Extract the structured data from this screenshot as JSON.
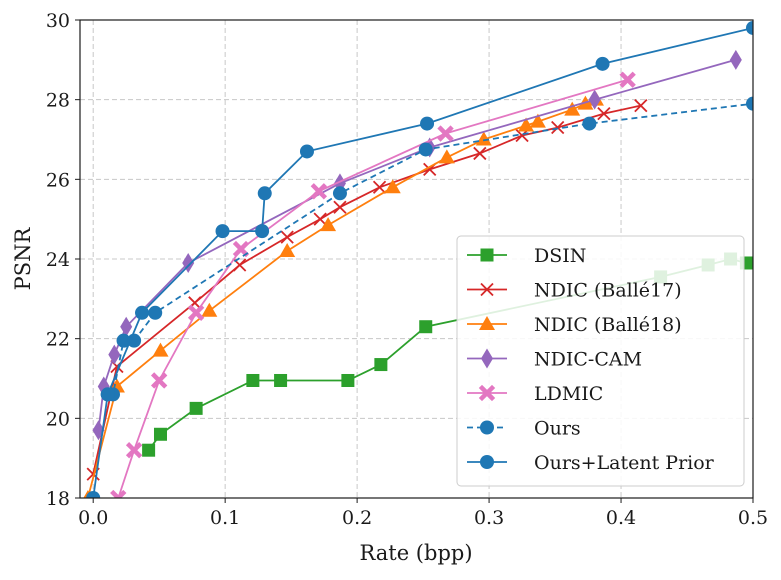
{
  "chart_data": {
    "type": "line",
    "title": "",
    "xlabel": "Rate (bpp)",
    "ylabel": "PSNR",
    "xlim": [
      -0.01,
      0.5
    ],
    "ylim": [
      18,
      30
    ],
    "xticks": [
      0.0,
      0.1,
      0.2,
      0.3,
      0.4,
      0.5
    ],
    "xtick_labels": [
      "0.0",
      "0.1",
      "0.2",
      "0.3",
      "0.4",
      "0.5"
    ],
    "yticks": [
      18,
      20,
      22,
      24,
      26,
      28,
      30
    ],
    "ytick_labels": [
      "18",
      "20",
      "22",
      "24",
      "26",
      "28",
      "30"
    ],
    "grid": true,
    "grid_style": "dashed",
    "legend_position": "lower-right",
    "series": [
      {
        "name": "DSIN",
        "color": "#2ca02c",
        "marker": "square",
        "line_style": "solid",
        "x": [
          0.042,
          0.051,
          0.078,
          0.121,
          0.142,
          0.193,
          0.218,
          0.252,
          0.43,
          0.466,
          0.483,
          0.495
        ],
        "y": [
          19.2,
          19.6,
          20.25,
          20.95,
          20.95,
          20.95,
          21.35,
          22.3,
          23.55,
          23.85,
          24.0,
          23.9
        ]
      },
      {
        "name": "NDIC (Ballé17)",
        "color": "#d62728",
        "marker": "x",
        "line_style": "solid",
        "x": [
          0.0,
          0.018,
          0.077,
          0.111,
          0.147,
          0.172,
          0.187,
          0.217,
          0.255,
          0.293,
          0.325,
          0.352,
          0.387,
          0.415
        ],
        "y": [
          18.6,
          21.3,
          22.9,
          23.85,
          24.55,
          25.0,
          25.3,
          25.8,
          26.25,
          26.65,
          27.1,
          27.3,
          27.65,
          27.85
        ]
      },
      {
        "name": "NDIC (Ballé18)",
        "color": "#ff7f0e",
        "marker": "triangle",
        "line_style": "solid",
        "x": [
          -0.004,
          0.018,
          0.051,
          0.088,
          0.147,
          0.178,
          0.227,
          0.268,
          0.296,
          0.328,
          0.337,
          0.363,
          0.373,
          0.381
        ],
        "y": [
          18.0,
          20.8,
          21.7,
          22.7,
          24.2,
          24.85,
          25.8,
          26.55,
          27.0,
          27.35,
          27.45,
          27.75,
          27.9,
          28.0
        ]
      },
      {
        "name": "NDIC-CAM",
        "color": "#9467bd",
        "marker": "diamond",
        "line_style": "solid",
        "x": [
          0.004,
          0.008,
          0.016,
          0.025,
          0.072,
          0.187,
          0.255,
          0.38,
          0.487
        ],
        "y": [
          19.7,
          20.8,
          21.6,
          22.3,
          23.9,
          25.9,
          26.8,
          28.0,
          29.0
        ]
      },
      {
        "name": "LDMIC",
        "color": "#e377c2",
        "marker": "x-thick",
        "line_style": "solid",
        "x": [
          0.019,
          0.031,
          0.05,
          0.078,
          0.112,
          0.171,
          0.267,
          0.405
        ],
        "y": [
          18.0,
          19.2,
          20.95,
          22.65,
          24.25,
          25.7,
          27.15,
          28.5
        ]
      },
      {
        "name": "Ours",
        "color": "#1f77b4",
        "marker": "circle",
        "line_style": "dashed",
        "x": [
          0.011,
          0.015,
          0.023,
          0.031,
          0.047,
          0.187,
          0.252,
          0.376,
          0.5
        ],
        "y": [
          20.6,
          20.6,
          21.95,
          21.95,
          22.65,
          25.65,
          26.75,
          27.4,
          27.9
        ]
      },
      {
        "name": "Ours+Latent Prior",
        "color": "#1f77b4",
        "marker": "circle",
        "line_style": "solid",
        "x": [
          0.0,
          0.011,
          0.037,
          0.098,
          0.128,
          0.13,
          0.162,
          0.253,
          0.386,
          0.5
        ],
        "y": [
          18.0,
          20.6,
          22.65,
          24.7,
          24.7,
          25.65,
          26.7,
          27.4,
          28.9,
          29.8
        ]
      }
    ]
  }
}
